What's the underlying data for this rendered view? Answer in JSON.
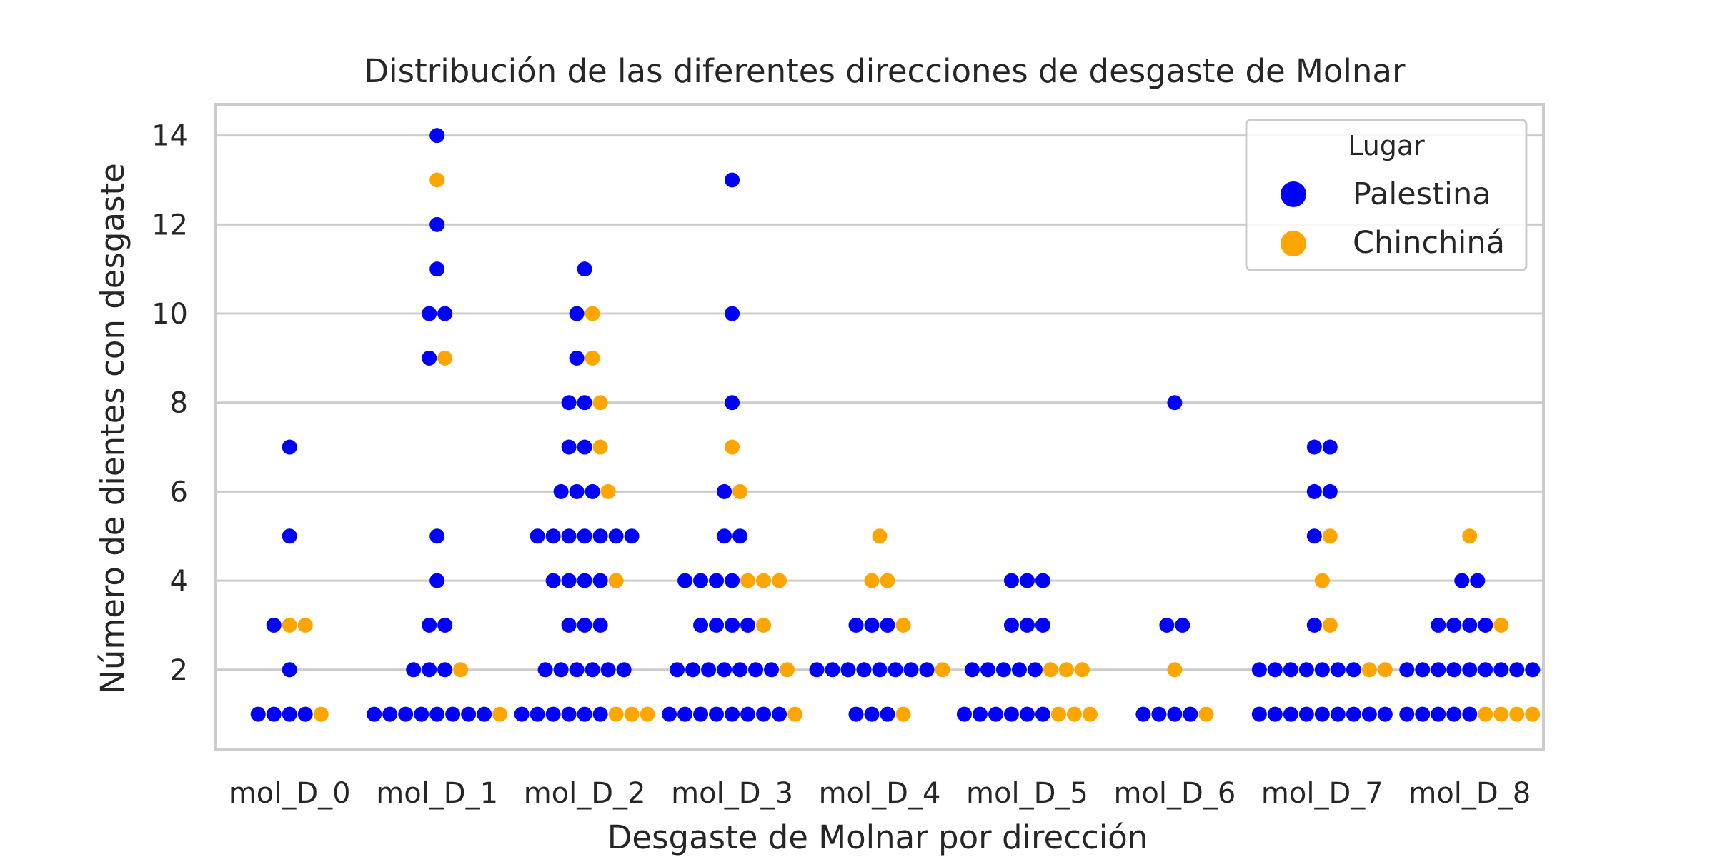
{
  "chart_data": {
    "type": "scatter",
    "subtype": "swarm",
    "title": "Distribución de las diferentes direcciones de desgaste de Molnar",
    "xlabel": "Desgaste de Molnar por dirección",
    "ylabel": "Número de dientes con desgaste",
    "categories": [
      "mol_D_0",
      "mol_D_1",
      "mol_D_2",
      "mol_D_3",
      "mol_D_4",
      "mol_D_5",
      "mol_D_6",
      "mol_D_7",
      "mol_D_8"
    ],
    "yticks": [
      2,
      4,
      6,
      8,
      10,
      12,
      14
    ],
    "ylim": [
      0.2,
      14.7
    ],
    "grid": "horizontal",
    "legend": {
      "title": "Lugar",
      "position": "top-right"
    },
    "series": [
      {
        "name": "Palestina",
        "color": "#0000ff",
        "values": [
          [
            7,
            5,
            3,
            2,
            1,
            1,
            1,
            1
          ],
          [
            14,
            12,
            11,
            10,
            10,
            9,
            5,
            4,
            3,
            3,
            2,
            2,
            2,
            1,
            1,
            1,
            1,
            1,
            1,
            1,
            1
          ],
          [
            11,
            10,
            9,
            8,
            8,
            7,
            7,
            6,
            6,
            6,
            5,
            5,
            5,
            5,
            5,
            5,
            5,
            4,
            4,
            4,
            4,
            3,
            3,
            3,
            2,
            2,
            2,
            2,
            2,
            2,
            1,
            1,
            1,
            1,
            1,
            1
          ],
          [
            13,
            10,
            8,
            6,
            5,
            5,
            4,
            4,
            4,
            4,
            3,
            3,
            3,
            3,
            2,
            2,
            2,
            2,
            2,
            2,
            2,
            1,
            1,
            1,
            1,
            1,
            1,
            1,
            1
          ],
          [
            3,
            3,
            3,
            2,
            2,
            2,
            2,
            2,
            2,
            2,
            2,
            1,
            1,
            1
          ],
          [
            4,
            4,
            4,
            3,
            3,
            3,
            2,
            2,
            2,
            2,
            2,
            1,
            1,
            1,
            1,
            1,
            1
          ],
          [
            8,
            3,
            3,
            1,
            1,
            1,
            1
          ],
          [
            7,
            7,
            6,
            6,
            5,
            3,
            2,
            2,
            2,
            2,
            2,
            2,
            2,
            1,
            1,
            1,
            1,
            1,
            1,
            1,
            1,
            1
          ],
          [
            4,
            4,
            3,
            3,
            3,
            3,
            2,
            2,
            2,
            2,
            2,
            2,
            2,
            2,
            2,
            1,
            1,
            1,
            1,
            1
          ]
        ]
      },
      {
        "name": "Chinchiná",
        "color": "#ffa500",
        "values": [
          [
            3,
            3,
            1
          ],
          [
            13,
            9,
            2,
            1
          ],
          [
            10,
            9,
            8,
            7,
            6,
            4,
            1,
            1,
            1
          ],
          [
            7,
            6,
            4,
            4,
            4,
            3,
            2,
            1
          ],
          [
            5,
            4,
            4,
            3,
            2,
            1
          ],
          [
            2,
            2,
            2,
            1,
            1,
            1
          ],
          [
            2,
            1
          ],
          [
            5,
            4,
            3,
            2,
            2
          ],
          [
            5,
            3,
            1,
            1,
            1,
            1
          ]
        ]
      }
    ]
  }
}
